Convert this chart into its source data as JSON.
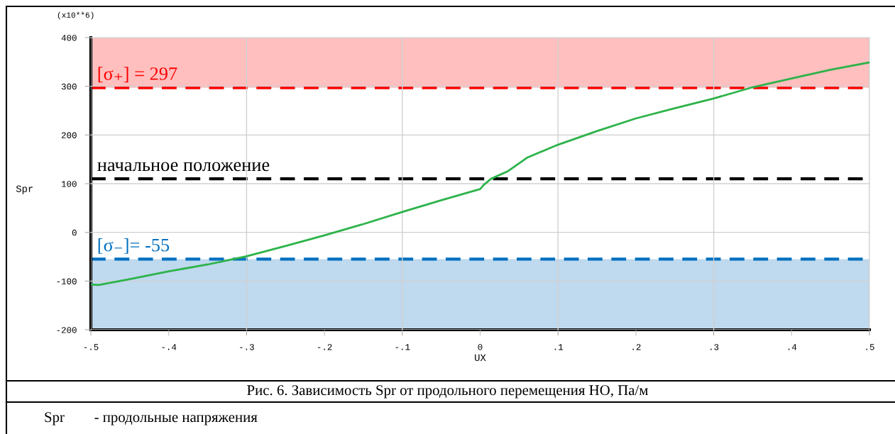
{
  "chart_data": {
    "type": "line",
    "xlabel": "UX",
    "ylabel": "Spr",
    "annotations": [
      "(x10**6)",
      "Рис. 6. Зависимость Spr от продольного перемещения НО, Па/м",
      "Spr        - продольные напряжения"
    ],
    "series": [
      {
        "color": "#2db34a",
        "x": [
          -0.5,
          -0.49,
          -0.45,
          -0.4,
          -0.35,
          -0.317,
          -0.3,
          -0.25,
          -0.2,
          -0.15,
          -0.1,
          -0.05,
          0.0,
          0.005,
          0.014,
          0.036,
          0.061,
          0.1,
          0.15,
          0.2,
          0.25,
          0.3,
          0.35,
          0.4,
          0.45,
          0.5
        ],
        "values": [
          -107,
          -108,
          -96,
          -80,
          -66,
          -55,
          -49,
          -28,
          -6,
          17,
          42,
          66,
          89,
          98,
          110,
          126,
          154,
          180,
          208,
          234,
          255,
          275,
          298,
          316,
          334,
          349
        ]
      }
    ],
    "xlim": [
      -0.5,
      0.5
    ],
    "ylim": [
      -200,
      400
    ],
    "xticks": [
      {
        "value": -0.5,
        "label": "-.5"
      },
      {
        "value": -0.4,
        "label": "-.4"
      },
      {
        "value": -0.3,
        "label": "-.3"
      },
      {
        "value": -0.2,
        "label": "-.2"
      },
      {
        "value": -0.1,
        "label": "-.1"
      },
      {
        "value": 0,
        "label": "0"
      },
      {
        "value": 0.1,
        "label": ".1"
      },
      {
        "value": 0.2,
        "label": ".2"
      },
      {
        "value": 0.3,
        "label": ".3"
      },
      {
        "value": 0.4,
        "label": ".4"
      },
      {
        "value": 0.5,
        "label": ".5"
      }
    ],
    "yticks": [
      -200,
      -100,
      0,
      100,
      200,
      300,
      400
    ],
    "grid": true,
    "legend": false,
    "marker": "none",
    "line_style": "solid",
    "ref_lines": [
      {
        "axis": "y",
        "value": 297,
        "label": "[σ₊] = 297",
        "color": "#ff0000",
        "line_style": "dashed"
      },
      {
        "axis": "y",
        "value": 110,
        "label": "начальное положение",
        "color": "#000000",
        "line_style": "dashed"
      },
      {
        "axis": "y",
        "value": -55,
        "label": "[σ₋]= -55",
        "color": "#0070c0",
        "line_style": "dashed"
      }
    ],
    "bands": [
      {
        "axis": "y",
        "from": 297,
        "to": 400,
        "color": "#ffbfbf"
      },
      {
        "axis": "y",
        "from": -200,
        "to": -55,
        "color": "#bfd9ee"
      }
    ]
  }
}
